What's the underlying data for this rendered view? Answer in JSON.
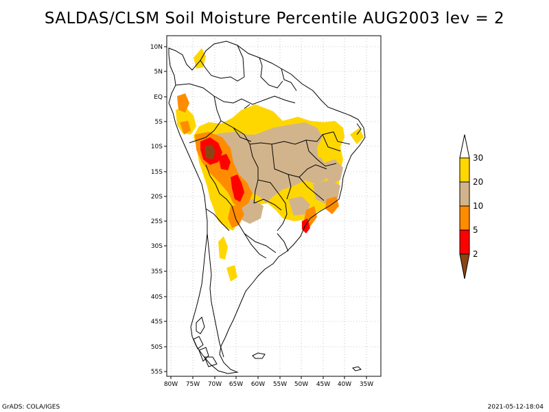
{
  "title": "SALDAS/CLSM Soil Moisture Percentile AUG2003 lev = 2",
  "lat_labels": [
    "10N",
    "5N",
    "EQ",
    "5S",
    "10S",
    "15S",
    "20S",
    "25S",
    "30S",
    "35S",
    "40S",
    "45S",
    "50S",
    "55S"
  ],
  "lon_labels": [
    "80W",
    "75W",
    "70W",
    "65W",
    "60W",
    "55W",
    "50W",
    "45W",
    "40W",
    "35W"
  ],
  "colorbar": {
    "labels": [
      "2",
      "5",
      "10",
      "20",
      "30"
    ],
    "colors": {
      "below_2": "#8b4513",
      "c2_5": "#ff0000",
      "c5_10": "#ff8c00",
      "c10_20": "#d2b48c",
      "c20_30": "#ffd700",
      "above_30": "#ffffff"
    }
  },
  "footer": {
    "left": "GrADS: COLA/IGES",
    "right": "2021-05-12-18:04"
  }
}
